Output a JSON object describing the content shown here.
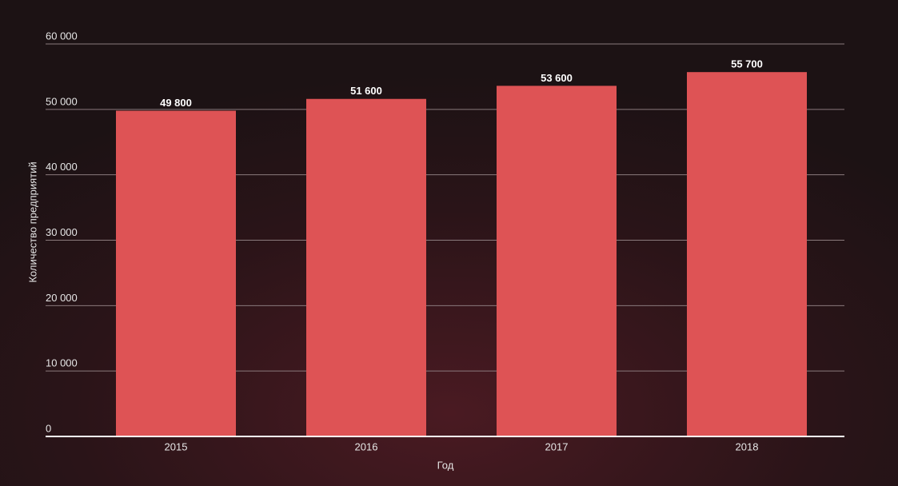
{
  "chart_data": {
    "type": "bar",
    "x_label": "Год",
    "y_label": "Количество предприятий",
    "categories": [
      "2015",
      "2016",
      "2017",
      "2018"
    ],
    "values": [
      49800,
      51600,
      53600,
      55700
    ],
    "value_labels": [
      "49 800",
      "51 600",
      "53 600",
      "55 700"
    ],
    "color": "#de5355",
    "ylim": [
      0,
      60000
    ],
    "yticks": [
      0,
      {
        "value": 10000,
        "label": "10 000"
      },
      {
        "value": 20000,
        "label": "20 000"
      },
      {
        "value": 30000,
        "label": "30 000"
      },
      {
        "value": 40000,
        "label": "40 000"
      },
      {
        "value": 50000,
        "label": "50 000"
      },
      {
        "value": 60000,
        "label": "60 000"
      }
    ],
    "grid": true
  }
}
